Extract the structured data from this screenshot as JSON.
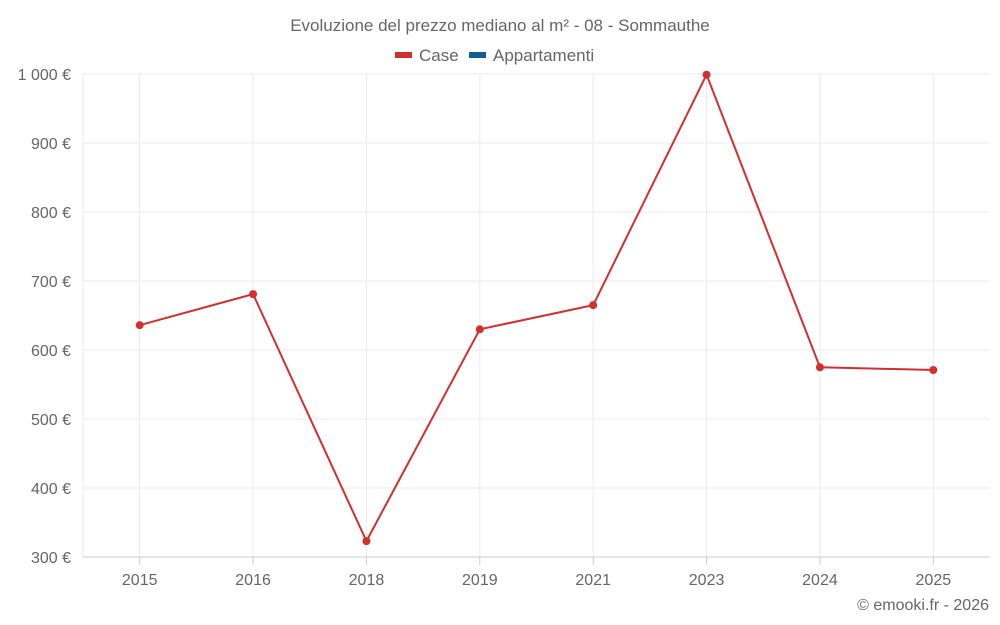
{
  "chart_data": {
    "type": "line",
    "title": "Evoluzione del prezzo mediano al m² - 08 - Sommauthe",
    "categories": [
      "2015",
      "2016",
      "2018",
      "2019",
      "2021",
      "2023",
      "2024",
      "2025"
    ],
    "series": [
      {
        "name": "Case",
        "color": "#d32f2f",
        "values": [
          636,
          681,
          323,
          630,
          665,
          999,
          575,
          571
        ]
      },
      {
        "name": "Appartamenti",
        "color": "#0d5f96",
        "values": [
          null,
          null,
          null,
          null,
          null,
          null,
          null,
          null
        ]
      }
    ],
    "ylim": [
      300,
      1000
    ],
    "yticks": [
      {
        "value": 1000,
        "label": "1 000 €"
      },
      {
        "value": 900,
        "label": "900 €"
      },
      {
        "value": 800,
        "label": "800 €"
      },
      {
        "value": 700,
        "label": "700 €"
      },
      {
        "value": 600,
        "label": "600 €"
      },
      {
        "value": 500,
        "label": "500 €"
      },
      {
        "value": 400,
        "label": "400 €"
      },
      {
        "value": 300,
        "label": "300 €"
      }
    ],
    "xlabel": "",
    "ylabel": "",
    "grid": true,
    "legend": "top-center"
  },
  "credit": "© emooki.fr - 2026"
}
